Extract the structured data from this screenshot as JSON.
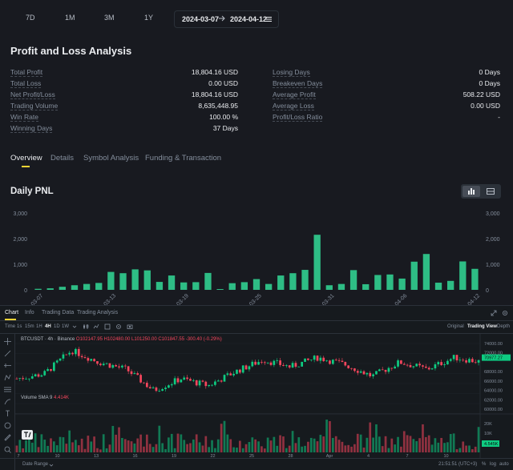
{
  "range": {
    "tabs": [
      "7D",
      "1M",
      "3M",
      "1Y"
    ],
    "start_date": "2024-03-07",
    "end_date": "2024-04-12"
  },
  "analysis": {
    "title": "Profit and Loss Analysis",
    "left": [
      {
        "label": "Total Profit",
        "value": "18,804.16 USD"
      },
      {
        "label": "Total Loss",
        "value": "0.00 USD"
      },
      {
        "label": "Net Profit/Loss",
        "value": "18,804.16 USD"
      },
      {
        "label": "Trading Volume",
        "value": "8,635,448.95"
      },
      {
        "label": "Win Rate",
        "value": "100.00 %"
      },
      {
        "label": "Winning Days",
        "value": "37 Days"
      }
    ],
    "right": [
      {
        "label": "Losing Days",
        "value": "0 Days"
      },
      {
        "label": "Breakeven Days",
        "value": "0 Days"
      },
      {
        "label": "Average Profit",
        "value": "508.22 USD"
      },
      {
        "label": "Average Loss",
        "value": "0.00 USD"
      },
      {
        "label": "Profit/Loss Ratio",
        "value": "-"
      }
    ]
  },
  "tabs": [
    "Overview",
    "Details",
    "Symbol Analysis",
    "Funding & Transaction"
  ],
  "daily_pnl": {
    "title": "Daily PNL",
    "bar_color": "#2ebd85"
  },
  "chart_data": {
    "type": "bar",
    "title": "Daily PNL",
    "ylim": [
      0,
      3000
    ],
    "yticks": [
      "3,000",
      "2,000",
      "1,000",
      "0"
    ],
    "yticks_right": [
      "3,000",
      "2,000",
      "1,000",
      "0"
    ],
    "categories": [
      "03-07",
      "03-08",
      "03-09",
      "03-10",
      "03-11",
      "03-12",
      "03-13",
      "03-14",
      "03-15",
      "03-16",
      "03-17",
      "03-18",
      "03-19",
      "03-20",
      "03-21",
      "03-22",
      "03-23",
      "03-24",
      "03-25",
      "03-26",
      "03-27",
      "03-28",
      "03-29",
      "03-30",
      "03-31",
      "04-01",
      "04-02",
      "04-03",
      "04-04",
      "04-05",
      "04-06",
      "04-07",
      "04-08",
      "04-09",
      "04-10",
      "04-11",
      "04-12"
    ],
    "xtick_labels": [
      "03-07",
      "03-13",
      "03-19",
      "03-25",
      "03-31",
      "04-06",
      "04-12"
    ],
    "values": [
      40,
      60,
      120,
      180,
      230,
      270,
      700,
      650,
      800,
      760,
      310,
      560,
      290,
      300,
      660,
      30,
      260,
      300,
      420,
      230,
      560,
      650,
      780,
      2150,
      180,
      230,
      770,
      220,
      580,
      600,
      440,
      1100,
      1400,
      280,
      350,
      1110,
      820
    ]
  },
  "trading_view": {
    "tabs": [
      "Chart",
      "Info",
      "Trading Data",
      "Trading Analysis"
    ],
    "intervals": [
      "Time",
      "1s",
      "15m",
      "1H",
      "4H",
      "1D",
      "1W"
    ],
    "modes": [
      "Original",
      "Trading View",
      "Depth"
    ],
    "symbol": "BTCUSDT · 4h · Binance",
    "ohlc": "O102147.95 H102480.00 L101250.00 C101847.55 -300.40 (-0.29%)",
    "price_axis": [
      "74000.00",
      "72000.00",
      "70977.27",
      "68000.00",
      "66000.00",
      "64000.00",
      "62000.00",
      "60000.00"
    ],
    "last_price": "70977.27",
    "volume_label": "Volume SMA 9",
    "volume_value": "4.414K",
    "volume_axis": [
      "20K",
      "10K",
      "4.545K"
    ],
    "time_axis": [
      "7",
      "10",
      "13",
      "16",
      "19",
      "22",
      "25",
      "28",
      "Apr",
      "4",
      "7",
      "10"
    ],
    "date_range_label": "Date Range",
    "clock": "21:51:51 (UTC+3)",
    "percent": "%",
    "log": "log",
    "auto": "auto",
    "up_color": "#0ecb81",
    "down_color": "#f6465d"
  }
}
